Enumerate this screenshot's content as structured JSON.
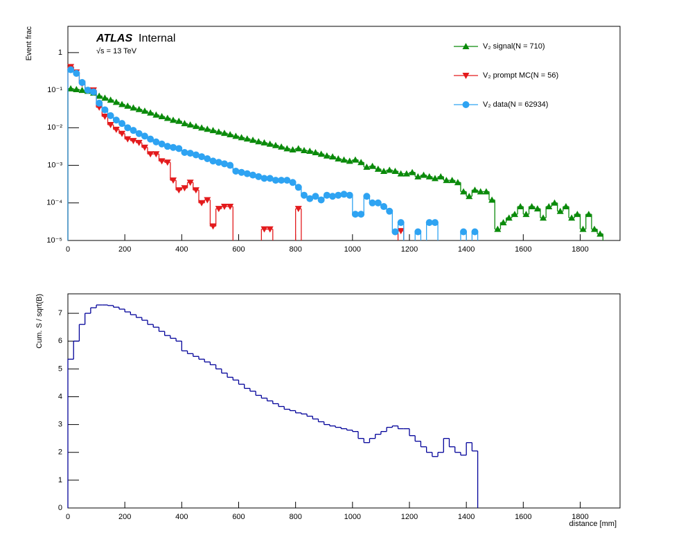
{
  "chart_data": [
    {
      "type": "histogram",
      "annotations": [
        "ATLAS",
        "Internal",
        "√s = 13 TeV"
      ],
      "ylabel": "Event frac",
      "log_y": true,
      "legend": "upper right",
      "xlim": [
        0,
        1940
      ],
      "xticks": [
        0,
        200,
        400,
        600,
        800,
        1000,
        1200,
        1400,
        1600,
        1800
      ],
      "ylim": [
        1e-05,
        5
      ],
      "yticks": [
        {
          "value": 1e-05,
          "label": "10⁻⁵"
        },
        {
          "value": 0.0001,
          "label": "10⁻⁴"
        },
        {
          "value": 0.001,
          "label": "10⁻³"
        },
        {
          "value": 0.01,
          "label": "10⁻²"
        },
        {
          "value": 0.1,
          "label": "10⁻¹"
        },
        1
      ],
      "bins": [
        0,
        20,
        40,
        60,
        80,
        100,
        120,
        140,
        160,
        180,
        200,
        220,
        240,
        260,
        280,
        300,
        320,
        340,
        360,
        380,
        400,
        420,
        440,
        460,
        480,
        500,
        520,
        540,
        560,
        580,
        600,
        620,
        640,
        660,
        680,
        700,
        720,
        740,
        760,
        780,
        800,
        820,
        840,
        860,
        880,
        900,
        920,
        940,
        960,
        980,
        1000,
        1020,
        1040,
        1060,
        1080,
        1100,
        1120,
        1140,
        1160,
        1180,
        1200,
        1220,
        1240,
        1260,
        1280,
        1300,
        1320,
        1340,
        1360,
        1380,
        1400,
        1420,
        1440,
        1460,
        1480,
        1500,
        1520,
        1540,
        1560,
        1580,
        1600,
        1620,
        1640,
        1660,
        1680,
        1700,
        1720,
        1740,
        1760,
        1780,
        1800,
        1820,
        1840,
        1860,
        1880,
        1900,
        1920,
        1940
      ],
      "series": [
        {
          "name": "V₂ signal(N = 710)",
          "color": "#0a8a0a",
          "marker": "triangle-up",
          "values": [
            0.11,
            0.105,
            0.1,
            0.095,
            0.085,
            0.07,
            0.062,
            0.055,
            0.048,
            0.042,
            0.038,
            0.034,
            0.031,
            0.028,
            0.025,
            0.022,
            0.02,
            0.018,
            0.016,
            0.015,
            0.013,
            0.012,
            0.011,
            0.01,
            0.0092,
            0.0085,
            0.0078,
            0.0072,
            0.0066,
            0.006,
            0.0055,
            0.0051,
            0.0047,
            0.0043,
            0.004,
            0.0037,
            0.0034,
            0.0031,
            0.0028,
            0.0026,
            0.0028,
            0.0025,
            0.0024,
            0.0022,
            0.002,
            0.0018,
            0.0017,
            0.0015,
            0.0014,
            0.0013,
            0.0014,
            0.0012,
            0.0009,
            0.00095,
            0.0008,
            0.0007,
            0.00075,
            0.0007,
            0.0006,
            0.0006,
            0.00065,
            0.0005,
            0.00055,
            0.0005,
            0.00045,
            0.0005,
            0.0004,
            0.0004,
            0.00035,
            0.0002,
            0.00015,
            0.00022,
            0.0002,
            0.0002,
            0.00012,
            2e-05,
            3e-05,
            4e-05,
            5e-05,
            8e-05,
            5e-05,
            8e-05,
            7e-05,
            4e-05,
            8e-05,
            0.0001,
            6e-05,
            8e-05,
            4e-05,
            5e-05,
            2e-05,
            5e-05,
            2e-05,
            1.5e-05,
            null,
            null,
            null
          ]
        },
        {
          "name": "V₂ prompt MC(N = 56)",
          "color": "#e31a1c",
          "marker": "triangle-down",
          "values": [
            0.42,
            0.3,
            0.15,
            0.1,
            0.1,
            0.035,
            0.02,
            0.012,
            0.009,
            0.007,
            0.005,
            0.0045,
            0.004,
            0.003,
            0.002,
            0.002,
            0.0013,
            0.0012,
            0.0004,
            0.00022,
            0.00025,
            0.00035,
            0.00022,
            0.0001,
            0.00012,
            2.4e-05,
            7e-05,
            8e-05,
            8e-05,
            null,
            null,
            null,
            null,
            null,
            2e-05,
            2e-05,
            null,
            null,
            null,
            null,
            7e-05,
            null,
            null,
            null,
            null,
            null,
            null,
            null,
            null,
            null,
            null,
            null,
            null,
            null,
            null,
            null,
            null,
            null,
            1.8e-05,
            null,
            null,
            null,
            null,
            null,
            null,
            null,
            null,
            null,
            null,
            null,
            null,
            null,
            null,
            null,
            null,
            null,
            null,
            null,
            null,
            null,
            null,
            null,
            null,
            null,
            null,
            null,
            null,
            null,
            null,
            null,
            null,
            null,
            null,
            null,
            null,
            null,
            null
          ]
        },
        {
          "name": "V₂ data(N = 62934)",
          "color": "#2ea3f2",
          "marker": "circle",
          "values": [
            0.35,
            0.28,
            0.16,
            0.1,
            0.09,
            0.045,
            0.03,
            0.021,
            0.016,
            0.013,
            0.01,
            0.0085,
            0.007,
            0.006,
            0.005,
            0.0042,
            0.0037,
            0.0032,
            0.003,
            0.0028,
            0.0022,
            0.0021,
            0.0019,
            0.0017,
            0.0015,
            0.0013,
            0.0012,
            0.0011,
            0.001,
            0.0007,
            0.00065,
            0.0006,
            0.00055,
            0.0005,
            0.00045,
            0.00045,
            0.0004,
            0.0004,
            0.0004,
            0.00035,
            0.00026,
            0.00016,
            0.00013,
            0.00015,
            0.00012,
            0.00016,
            0.00015,
            0.00016,
            0.00017,
            0.00016,
            5e-05,
            5e-05,
            0.00015,
            0.0001,
            0.0001,
            8e-05,
            6e-05,
            1.7e-05,
            3e-05,
            null,
            null,
            1.7e-05,
            null,
            3e-05,
            3e-05,
            null,
            null,
            null,
            null,
            1.7e-05,
            null,
            1.7e-05,
            null,
            null,
            null,
            null,
            null,
            null,
            null,
            null,
            null,
            null,
            null,
            null,
            null,
            null,
            null,
            null,
            null,
            null,
            null,
            null,
            null,
            null,
            null,
            null,
            null
          ]
        }
      ]
    },
    {
      "type": "histogram",
      "ylabel": "Cum. S / sqrt(B)",
      "xlabel": "distance [mm]",
      "color": "#000099",
      "xlim": [
        0,
        1940
      ],
      "xticks": [
        0,
        200,
        400,
        600,
        800,
        1000,
        1200,
        1400,
        1600,
        1800
      ],
      "ylim": [
        0,
        7.7
      ],
      "yticks": [
        0,
        1,
        2,
        3,
        4,
        5,
        6,
        7
      ],
      "bins": [
        0,
        20,
        40,
        60,
        80,
        100,
        120,
        140,
        160,
        180,
        200,
        220,
        240,
        260,
        280,
        300,
        320,
        340,
        360,
        380,
        400,
        420,
        440,
        460,
        480,
        500,
        520,
        540,
        560,
        580,
        600,
        620,
        640,
        660,
        680,
        700,
        720,
        740,
        760,
        780,
        800,
        820,
        840,
        860,
        880,
        900,
        920,
        940,
        960,
        980,
        1000,
        1020,
        1040,
        1060,
        1080,
        1100,
        1120,
        1140,
        1160,
        1180,
        1200,
        1220,
        1240,
        1260,
        1280,
        1300,
        1320,
        1340,
        1360,
        1380,
        1400,
        1420,
        1440
      ],
      "values": [
        5.35,
        6.0,
        6.6,
        7.0,
        7.2,
        7.3,
        7.3,
        7.28,
        7.22,
        7.15,
        7.05,
        6.95,
        6.85,
        6.75,
        6.6,
        6.5,
        6.35,
        6.2,
        6.1,
        6.0,
        5.65,
        5.55,
        5.45,
        5.35,
        5.25,
        5.15,
        5.0,
        4.85,
        4.7,
        4.6,
        4.45,
        4.3,
        4.2,
        4.05,
        3.95,
        3.85,
        3.75,
        3.65,
        3.55,
        3.5,
        3.42,
        3.38,
        3.3,
        3.2,
        3.1,
        3.0,
        2.95,
        2.9,
        2.85,
        2.8,
        2.75,
        2.5,
        2.35,
        2.5,
        2.65,
        2.75,
        2.9,
        2.95,
        2.85,
        2.85,
        2.6,
        2.4,
        2.2,
        2.0,
        1.85,
        2.0,
        2.5,
        2.2,
        2.0,
        1.9,
        2.35,
        2.05
      ]
    }
  ]
}
